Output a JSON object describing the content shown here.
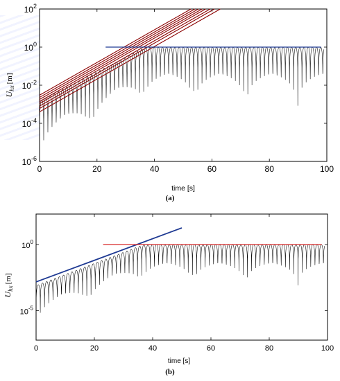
{
  "figure": {
    "caption_a": "(a)",
    "caption_b": "(b)"
  },
  "chart_data": [
    {
      "type": "line",
      "panel": "a",
      "xlabel": "time [s]",
      "ylabel": "U_hx [m]",
      "ylabel_main": "U",
      "ylabel_sub": "hx",
      "ylabel_unit": "[m]",
      "yscale": "log",
      "xlim": [
        0,
        100
      ],
      "ylim": [
        1e-06,
        100
      ],
      "xticks": [
        0,
        20,
        40,
        60,
        80,
        100
      ],
      "xtick_labels": [
        "0",
        "20",
        "40",
        "60",
        "80",
        "100"
      ],
      "yticks": [
        1e-06,
        0.0001,
        0.01,
        1,
        100
      ],
      "ytick_bases": [
        "10",
        "10",
        "10",
        "10",
        "10"
      ],
      "ytick_exps": [
        "-6",
        "-4",
        "-2",
        "0",
        "2"
      ],
      "grid": false,
      "colors": {
        "signal": "#000000",
        "fits": "#8b0000",
        "saturation": "#1f3a93"
      },
      "oscillation": {
        "period_s": 1.45,
        "growth_start": 0.0015,
        "growth_end_time": 37,
        "saturation_value": 1.0
      },
      "series": [
        {
          "style": "envelope-fits",
          "slope_decades_per_s": 0.0858,
          "intercepts_at_0": [
            0.0004,
            0.0006,
            0.0008,
            0.0011,
            0.0014,
            0.0018,
            0.0023,
            0.003
          ]
        },
        {
          "style": "saturation-line",
          "x": [
            23,
            98
          ],
          "y": [
            1.0,
            1.0
          ]
        }
      ]
    },
    {
      "type": "line",
      "panel": "b",
      "xlabel": "time [s]",
      "ylabel": "U_hx [m]",
      "ylabel_main": "U",
      "ylabel_sub": "hx",
      "ylabel_unit": "[m]",
      "yscale": "log",
      "xlim": [
        0,
        100
      ],
      "ylim": [
        6e-08,
        200
      ],
      "xticks": [
        0,
        20,
        40,
        60,
        80,
        100
      ],
      "xtick_labels": [
        "0",
        "20",
        "40",
        "60",
        "80",
        "100"
      ],
      "yticks": [
        1e-05,
        1
      ],
      "ytick_bases": [
        "10",
        "10"
      ],
      "ytick_exps": [
        "-5",
        "0"
      ],
      "grid": false,
      "colors": {
        "signal": "#000000",
        "fit": "#1f3a93",
        "saturation": "#d62728"
      },
      "oscillation": {
        "period_s": 1.45,
        "growth_start": 0.0008,
        "growth_end_time": 37,
        "saturation_value": 1.0
      },
      "series": [
        {
          "style": "fit-line",
          "x": [
            0,
            50
          ],
          "y": [
            0.0015,
            18
          ]
        },
        {
          "style": "saturation-line",
          "x": [
            23,
            98
          ],
          "y": [
            1.0,
            1.0
          ]
        }
      ]
    }
  ]
}
